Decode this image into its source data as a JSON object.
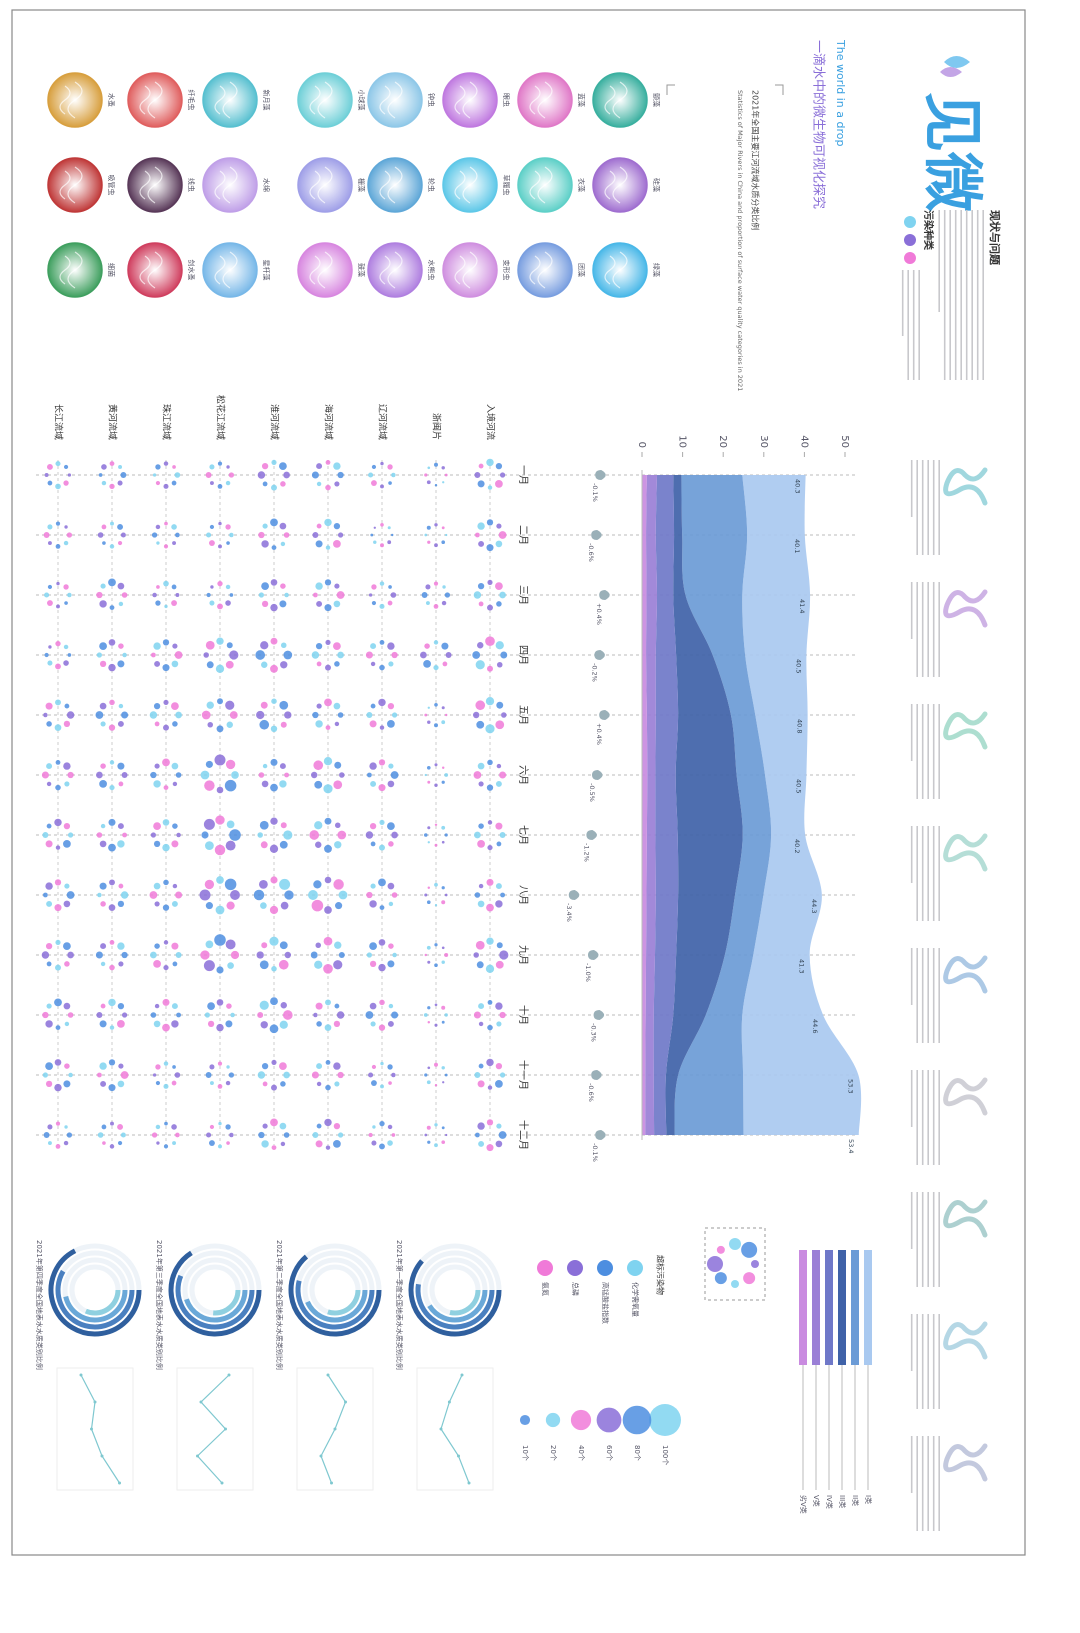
{
  "header": {
    "title": "见微",
    "subtitle": "一滴水中的微生物可视化探究",
    "english": "The world in a drop",
    "section": "现状与问题",
    "pollution_types": "污染种类"
  },
  "microbes": [
    "颤藻",
    "硅藻",
    "绿藻",
    "蓝藻",
    "衣藻",
    "团藻",
    "眼虫",
    "草履虫",
    "变形虫",
    "钟虫",
    "轮虫",
    "水熊虫",
    "小球藻",
    "栅藻",
    "鼓藻",
    "新月藻",
    "水绵",
    "星杆藻",
    "纤毛虫",
    "线虫",
    "剑水蚤",
    "水蚤",
    "吸管虫",
    "细菌"
  ],
  "chart_data": [
    {
      "type": "stream",
      "title": "2021年全国主要江河流域水质分类比例",
      "subtitle": "Statistics of Major Rivers in China and proportion of surface water quality categories in 2021",
      "categories": [
        "一月",
        "二月",
        "三月",
        "四月",
        "五月",
        "六月",
        "七月",
        "八月",
        "九月",
        "十月",
        "十一月",
        "十二月"
      ],
      "series": [
        {
          "name": "劣V类",
          "color": "#c98be0",
          "values": [
            1.2,
            1.0,
            1.1,
            1.0,
            1.2,
            1.3,
            1.2,
            1.1,
            1.0,
            0.9,
            0.8,
            0.8
          ]
        },
        {
          "name": "V类",
          "color": "#9a7fd6",
          "values": [
            2.5,
            2.4,
            2.6,
            2.4,
            2.2,
            2.0,
            2.1,
            2.3,
            2.2,
            2.0,
            2.1,
            2.2
          ]
        },
        {
          "name": "IV类",
          "color": "#6f78c8",
          "values": [
            4.0,
            4.5,
            4.0,
            5.0,
            5.5,
            5.0,
            5.5,
            5.5,
            5.2,
            4.8,
            3.0,
            3.0
          ]
        },
        {
          "name": "III类",
          "color": "#3f62a8",
          "values": [
            2,
            2,
            3,
            9,
            13,
            15,
            16,
            14,
            12,
            8,
            3,
            2
          ]
        },
        {
          "name": "II类",
          "color": "#6b9bd6",
          "values": [
            15,
            16,
            14,
            8,
            6,
            7,
            7,
            7,
            7,
            9,
            16,
            17
          ]
        },
        {
          "name": "I类",
          "color": "#a9c9f0",
          "values": [
            15.6,
            14.2,
            16.7,
            15.1,
            12.9,
            10.2,
            8.4,
            14.4,
            13.9,
            19.9,
            28.4,
            28.4
          ]
        }
      ],
      "totals": [
        40.3,
        40.1,
        41.4,
        40.5,
        40.8,
        40.5,
        40.2,
        44.3,
        41.3,
        44.6,
        53.3,
        53.4
      ],
      "changes": [
        -0.1,
        -0.6,
        0.4,
        -0.2,
        0.4,
        -0.5,
        -1.2,
        -3.4,
        -1.0,
        -0.3,
        -0.6,
        -0.1
      ],
      "change_labels": [
        "-0.1%",
        "-0.6%",
        "+0.4%",
        "-0.2%",
        "+0.4%",
        "-0.5%",
        "-1.2%",
        "-3.4%",
        "-1.0%",
        "-0.3%",
        "-0.6%",
        "-0.1%"
      ],
      "ylim": [
        0,
        50
      ],
      "yticks": [
        0,
        10,
        20,
        30,
        40,
        50
      ],
      "grid": false
    },
    {
      "type": "dots",
      "rows": [
        "入境河流",
        "浙闽片",
        "辽河流域",
        "海河流域",
        "淮河流域",
        "松花江流域",
        "珠江流域",
        "黄河流域",
        "长江流域"
      ],
      "values": [
        [
          3,
          3,
          3,
          4,
          4,
          3,
          3,
          3,
          4,
          3,
          3,
          3
        ],
        [
          1,
          1,
          2,
          3,
          1,
          1,
          1,
          1,
          1,
          1,
          1,
          1
        ],
        [
          2,
          1,
          2,
          3,
          3,
          3,
          3,
          3,
          3,
          3,
          2,
          2
        ],
        [
          3,
          3,
          3,
          3,
          3,
          4,
          4,
          5,
          4,
          3,
          3,
          3
        ],
        [
          3,
          3,
          3,
          4,
          4,
          3,
          4,
          5,
          4,
          4,
          3,
          3
        ],
        [
          2,
          2,
          2,
          4,
          4,
          5,
          5,
          5,
          5,
          3,
          2,
          2
        ],
        [
          2,
          2,
          2,
          3,
          3,
          3,
          3,
          3,
          3,
          3,
          2,
          2
        ],
        [
          2,
          2,
          3,
          3,
          3,
          3,
          3,
          3,
          3,
          3,
          3,
          2
        ],
        [
          2,
          2,
          2,
          2,
          3,
          3,
          3,
          3,
          3,
          3,
          3,
          2
        ]
      ],
      "legend_title": "超标污染物",
      "pollutants": [
        {
          "name": "化学需氧量",
          "color": "#7fd3f0"
        },
        {
          "name": "高锰酸盐指数",
          "color": "#4d8ee0"
        },
        {
          "name": "总磷",
          "color": "#8a6fd8"
        },
        {
          "name": "氨氮",
          "color": "#f07ad8"
        }
      ],
      "size_legend": [
        100,
        80,
        60,
        40,
        20,
        10
      ],
      "size_labels": [
        "100个",
        "80个",
        "60个",
        "40个",
        "20个",
        "10个"
      ]
    },
    {
      "type": "radial",
      "title": "2021年第一季度全国地表水水质类别比例",
      "values": [
        82,
        70,
        55,
        38
      ],
      "line": [
        60,
        42,
        30,
        55,
        70
      ],
      "ylim": [
        0,
        100
      ]
    },
    {
      "type": "radial",
      "title": "2021年第二季度全国地表水水质类别比例",
      "values": [
        85,
        72,
        58,
        40
      ],
      "line": [
        40,
        65,
        50,
        30,
        45
      ],
      "ylim": [
        0,
        100
      ]
    },
    {
      "type": "radial",
      "title": "2021年第三季度全国地表水水质类别比例",
      "values": [
        88,
        75,
        60,
        35
      ],
      "line": [
        70,
        30,
        65,
        25,
        60
      ],
      "ylim": [
        0,
        100
      ]
    },
    {
      "type": "radial",
      "title": "2021年第四季度全国地表水水质类别比例",
      "values": [
        90,
        78,
        62,
        42
      ],
      "line": [
        30,
        50,
        45,
        60,
        85
      ],
      "ylim": [
        0,
        100
      ]
    }
  ]
}
